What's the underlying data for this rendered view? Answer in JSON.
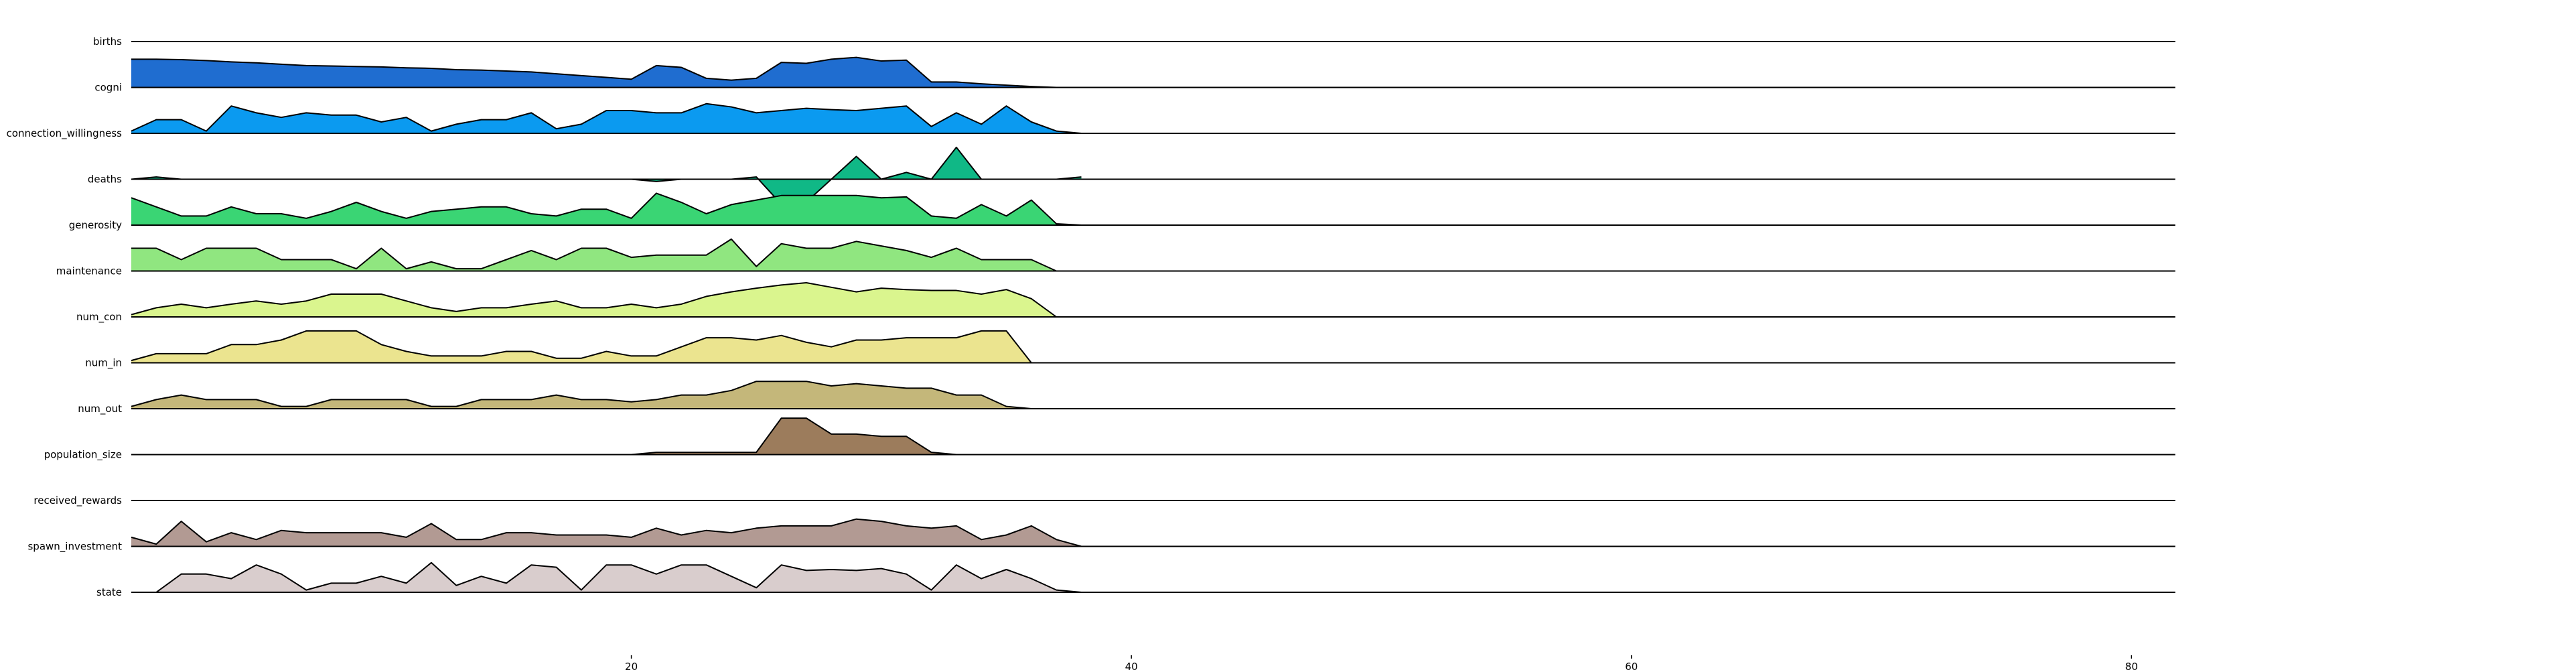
{
  "chart_data": {
    "type": "ridgeline",
    "xlim": [
      0,
      82
    ],
    "xticks": [
      20,
      40,
      60,
      80
    ],
    "grid": false,
    "legend": "none",
    "series": [
      {
        "name": "births",
        "color": "#1f3f9a",
        "values": [
          0,
          0,
          0,
          0,
          0,
          0,
          0,
          0,
          0,
          0,
          0,
          0,
          0,
          0,
          0,
          0,
          0,
          0,
          0,
          0,
          0,
          0,
          0,
          0,
          0,
          0,
          0,
          0,
          0,
          0,
          0,
          0,
          0,
          0,
          0,
          0,
          0,
          0,
          0
        ]
      },
      {
        "name": "cogni",
        "color": "#1f6dd0",
        "values": [
          0.62,
          0.62,
          0.61,
          0.59,
          0.56,
          0.54,
          0.51,
          0.48,
          0.47,
          0.46,
          0.45,
          0.43,
          0.42,
          0.39,
          0.38,
          0.36,
          0.34,
          0.3,
          0.26,
          0.22,
          0.18,
          0.48,
          0.44,
          0.2,
          0.16,
          0.2,
          0.55,
          0.53,
          0.62,
          0.66,
          0.58,
          0.6,
          0.12,
          0.12,
          0.08,
          0.05,
          0.02,
          0,
          0
        ]
      },
      {
        "name": "connection_willingness",
        "color": "#0b9af0",
        "values": [
          0.05,
          0.3,
          0.3,
          0.05,
          0.6,
          0.45,
          0.35,
          0.45,
          0.4,
          0.4,
          0.25,
          0.35,
          0.05,
          0.2,
          0.3,
          0.3,
          0.45,
          0.1,
          0.2,
          0.5,
          0.5,
          0.45,
          0.45,
          0.65,
          0.58,
          0.45,
          0.5,
          0.55,
          0.52,
          0.5,
          0.55,
          0.6,
          0.15,
          0.45,
          0.2,
          0.6,
          0.25,
          0.05,
          0
        ]
      },
      {
        "name": "deaths",
        "color": "#10b886",
        "values": [
          0,
          0.05,
          0,
          0,
          0,
          0,
          0,
          0,
          0,
          0,
          0,
          0,
          0,
          0,
          0,
          0,
          0,
          0,
          0,
          0,
          0,
          -0.05,
          0,
          0,
          0,
          0.05,
          -0.55,
          -0.5,
          0,
          0.5,
          0,
          0.15,
          0,
          0.7,
          0,
          0,
          0,
          0,
          0.05
        ]
      },
      {
        "name": "generosity",
        "color": "#3ad574",
        "values": [
          0.6,
          0.4,
          0.2,
          0.2,
          0.4,
          0.25,
          0.25,
          0.15,
          0.3,
          0.5,
          0.3,
          0.15,
          0.3,
          0.35,
          0.4,
          0.4,
          0.25,
          0.2,
          0.35,
          0.35,
          0.15,
          0.7,
          0.5,
          0.25,
          0.45,
          0.55,
          0.65,
          0.65,
          0.65,
          0.65,
          0.6,
          0.62,
          0.2,
          0.15,
          0.45,
          0.2,
          0.55,
          0.03,
          0
        ]
      },
      {
        "name": "maintenance",
        "color": "#90e680",
        "values": [
          0.5,
          0.5,
          0.25,
          0.5,
          0.5,
          0.5,
          0.25,
          0.25,
          0.25,
          0.05,
          0.5,
          0.05,
          0.2,
          0.05,
          0.05,
          0.25,
          0.45,
          0.25,
          0.5,
          0.5,
          0.3,
          0.35,
          0.35,
          0.35,
          0.7,
          0.1,
          0.6,
          0.5,
          0.5,
          0.65,
          0.55,
          0.45,
          0.3,
          0.5,
          0.25,
          0.25,
          0.25,
          0,
          0
        ]
      },
      {
        "name": "num_con",
        "color": "#daf58e",
        "values": [
          0.05,
          0.2,
          0.28,
          0.2,
          0.28,
          0.35,
          0.28,
          0.35,
          0.5,
          0.5,
          0.5,
          0.35,
          0.2,
          0.12,
          0.2,
          0.2,
          0.28,
          0.35,
          0.2,
          0.2,
          0.28,
          0.2,
          0.28,
          0.45,
          0.55,
          0.63,
          0.7,
          0.75,
          0.65,
          0.55,
          0.63,
          0.6,
          0.58,
          0.58,
          0.5,
          0.6,
          0.4,
          0,
          0
        ]
      },
      {
        "name": "num_in",
        "color": "#ebe48f",
        "values": [
          0.05,
          0.2,
          0.2,
          0.2,
          0.4,
          0.4,
          0.5,
          0.7,
          0.7,
          0.7,
          0.4,
          0.25,
          0.15,
          0.15,
          0.15,
          0.25,
          0.25,
          0.1,
          0.1,
          0.25,
          0.15,
          0.15,
          0.35,
          0.55,
          0.55,
          0.5,
          0.6,
          0.45,
          0.35,
          0.5,
          0.5,
          0.55,
          0.55,
          0.55,
          0.7,
          0.7,
          0,
          0,
          0
        ]
      },
      {
        "name": "num_out",
        "color": "#c4b77a",
        "values": [
          0.05,
          0.2,
          0.3,
          0.2,
          0.2,
          0.2,
          0.05,
          0.05,
          0.2,
          0.2,
          0.2,
          0.2,
          0.05,
          0.05,
          0.2,
          0.2,
          0.2,
          0.3,
          0.2,
          0.2,
          0.15,
          0.2,
          0.3,
          0.3,
          0.4,
          0.6,
          0.6,
          0.6,
          0.5,
          0.55,
          0.5,
          0.45,
          0.45,
          0.3,
          0.3,
          0.05,
          0,
          0,
          0
        ]
      },
      {
        "name": "population_size",
        "color": "#9c7c5c",
        "values": [
          0,
          0,
          0,
          0,
          0,
          0,
          0,
          0,
          0,
          0,
          0,
          0,
          0,
          0,
          0,
          0,
          0,
          0,
          0,
          0,
          0,
          0.05,
          0.05,
          0.05,
          0.05,
          0.05,
          0.8,
          0.8,
          0.45,
          0.45,
          0.4,
          0.4,
          0.05,
          0,
          0,
          0,
          0,
          0,
          0
        ]
      },
      {
        "name": "received_rewards",
        "color": "#b89e90",
        "values": [
          0,
          0,
          0,
          0,
          0,
          0,
          0,
          0,
          0,
          0,
          0,
          0,
          0,
          0,
          0,
          0,
          0,
          0,
          0,
          0,
          0,
          0,
          0,
          0,
          0,
          0,
          0,
          0,
          0,
          0,
          0,
          0,
          0,
          0,
          0,
          0,
          0,
          0,
          0
        ]
      },
      {
        "name": "spawn_investment",
        "color": "#b29a93",
        "values": [
          0.2,
          0.05,
          0.55,
          0.1,
          0.3,
          0.15,
          0.35,
          0.3,
          0.3,
          0.3,
          0.3,
          0.2,
          0.5,
          0.15,
          0.15,
          0.3,
          0.3,
          0.25,
          0.25,
          0.25,
          0.2,
          0.4,
          0.25,
          0.35,
          0.3,
          0.4,
          0.45,
          0.45,
          0.45,
          0.6,
          0.55,
          0.45,
          0.4,
          0.45,
          0.15,
          0.25,
          0.45,
          0.15,
          0
        ]
      },
      {
        "name": "state",
        "color": "#d9cdcd",
        "values": [
          0,
          0,
          0.4,
          0.4,
          0.3,
          0.6,
          0.4,
          0.05,
          0.2,
          0.2,
          0.35,
          0.2,
          0.65,
          0.15,
          0.35,
          0.2,
          0.6,
          0.55,
          0.05,
          0.6,
          0.6,
          0.4,
          0.6,
          0.6,
          0.35,
          0.1,
          0.6,
          0.48,
          0.5,
          0.48,
          0.52,
          0.4,
          0.05,
          0.6,
          0.3,
          0.5,
          0.3,
          0.05,
          0
        ]
      }
    ]
  }
}
